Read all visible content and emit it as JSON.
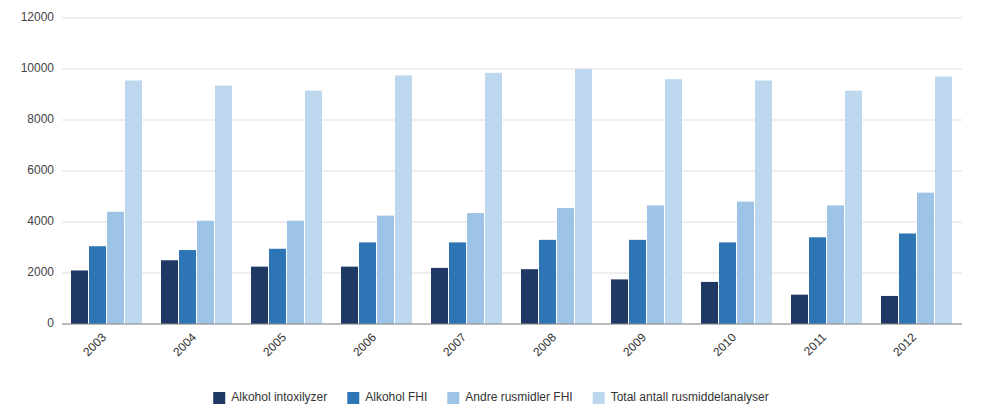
{
  "chart_data": {
    "type": "bar",
    "categories": [
      "2003",
      "2004",
      "2005",
      "2006",
      "2007",
      "2008",
      "2009",
      "2010",
      "2011",
      "2012"
    ],
    "series": [
      {
        "name": "Alkohol intoxilyzer",
        "color": "#1f3864",
        "values": [
          2100,
          2500,
          2250,
          2250,
          2200,
          2150,
          1750,
          1650,
          1150,
          1100
        ]
      },
      {
        "name": "Alkohol FHI",
        "color": "#2e75b6",
        "values": [
          3050,
          2900,
          2950,
          3200,
          3200,
          3300,
          3300,
          3200,
          3400,
          3550
        ]
      },
      {
        "name": "Andre rusmidler FHI",
        "color": "#9dc3e6",
        "values": [
          4400,
          4050,
          4050,
          4250,
          4350,
          4550,
          4650,
          4800,
          4650,
          5150
        ]
      },
      {
        "name": "Total antall rusmiddelanalyser",
        "color": "#bdd7ee",
        "values": [
          9550,
          9350,
          9150,
          9750,
          9850,
          10000,
          9600,
          9550,
          9150,
          9700
        ]
      }
    ],
    "ylim": [
      0,
      12000
    ],
    "yticks": [
      0,
      2000,
      4000,
      6000,
      8000,
      10000,
      12000
    ],
    "grid": true,
    "legend": "bottom"
  }
}
